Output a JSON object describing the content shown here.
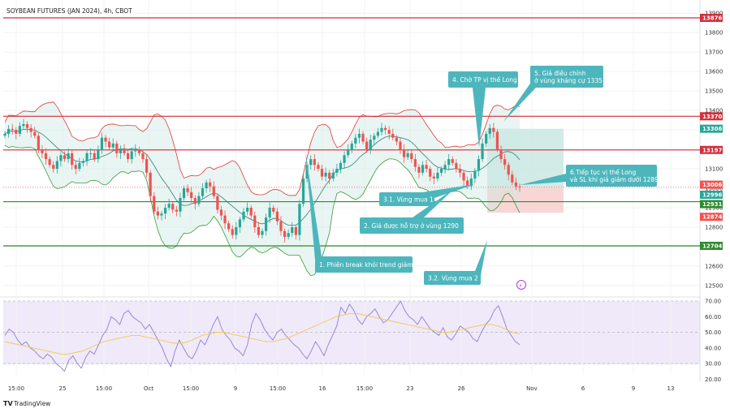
{
  "header": {
    "title": "SOYBEAN FUTURES (JAN 2024), 4h, CBOT"
  },
  "footer": {
    "brand": "TradingView",
    "event_glyph": "⚡"
  },
  "colors": {
    "up": "#26a69a",
    "down": "#ef5350",
    "red_line": "#d32f3c",
    "green_line": "#2e8b2e",
    "band_fill": "#cfe8e3",
    "band_upper": "#e03a3e",
    "band_lower": "#3c9a3c",
    "ma": "#2f7f7c",
    "rsi": "#8f7fd0",
    "rsi_ma": "#f2c94c",
    "rsi_bg": "#efe9f9",
    "callout": "#4db6bd",
    "tp_zone": "#cde9e4",
    "sl_zone": "#f8d2d2"
  },
  "chart_data": [
    {
      "type": "candlestick",
      "title": "SOYBEAN FUTURES (JAN 2024), 4h, CBOT",
      "y_axis_ticks": [
        13900,
        13800,
        13700,
        13600,
        13500,
        13400,
        13300,
        13200,
        13100,
        13000,
        12900,
        12800,
        12700,
        12600,
        12500
      ],
      "y_tick_labels": [
        "13900",
        "13800",
        "13700",
        "13600",
        "13500",
        "13400",
        "13300",
        "13200",
        "13100",
        "13000",
        "12900",
        "12800",
        "12700",
        "12600",
        "12500"
      ],
      "ylim": [
        12480,
        13925
      ],
      "x_tick_labels": [
        "15:00",
        "25",
        "15:00",
        "Oct",
        "15:00",
        "9",
        "15:00",
        "16",
        "15:00",
        "23",
        "26",
        "Nov",
        "6",
        "9",
        "13"
      ],
      "close_prices": [
        13280,
        13305,
        13300,
        13280,
        13320,
        13330,
        13310,
        13290,
        13270,
        13200,
        13180,
        13150,
        13120,
        13100,
        13140,
        13170,
        13150,
        13180,
        13120,
        13100,
        13130,
        13140,
        13180,
        13180,
        13150,
        13200,
        13260,
        13240,
        13210,
        13230,
        13180,
        13200,
        13180,
        13150,
        13190,
        13200,
        13180,
        13150,
        13080,
        12960,
        12880,
        12860,
        12870,
        12900,
        12920,
        12890,
        12880,
        12950,
        13000,
        12980,
        12950,
        12920,
        12960,
        13000,
        13030,
        13010,
        12960,
        12890,
        12860,
        12820,
        12790,
        12760,
        12800,
        12840,
        12880,
        12900,
        12860,
        12800,
        12760,
        12780,
        12850,
        12900,
        12880,
        12830,
        12780,
        12750,
        12770,
        12800,
        12760,
        12920,
        13050,
        13120,
        13150,
        13120,
        13100,
        13060,
        13080,
        13050,
        13080,
        13100,
        13130,
        13170,
        13200,
        13230,
        13260,
        13280,
        13240,
        13200,
        13250,
        13270,
        13290,
        13310,
        13300,
        13280,
        13260,
        13240,
        13200,
        13160,
        13180,
        13150,
        13110,
        13080,
        13120,
        13100,
        13060,
        13050,
        13080,
        13100,
        13120,
        13150,
        13130,
        13100,
        13080,
        13040,
        13010,
        13050,
        13090,
        13150,
        13230,
        13280,
        13310,
        13290,
        13200,
        13150,
        13120,
        13070,
        13030,
        13010,
        13006
      ],
      "levels": [
        {
          "value": 13876,
          "label": "13876",
          "color": "#d32f3c"
        },
        {
          "value": 13370,
          "label": "13370",
          "color": "#d32f3c"
        },
        {
          "value": 13306,
          "label": "13306",
          "color": "#26a69a"
        },
        {
          "value": 13197,
          "label": "13197",
          "color": "#d32f3c"
        },
        {
          "value": 13006,
          "label": "13006",
          "color": "#ef5350"
        },
        {
          "value": 12996,
          "label": "12996",
          "color": "#26a69a"
        },
        {
          "value": 12931,
          "label": "12931",
          "color": "#2e8b2e"
        },
        {
          "value": 12874,
          "label": "12874",
          "color": "#ef5350"
        },
        {
          "value": 12704,
          "label": "12704",
          "color": "#2e8b2e"
        }
      ],
      "annotations": [
        "4. Chờ TP vị thế Long",
        "5. Giá điều chỉnh\nở vùng kháng cự 1335",
        "6.Tiếp tục vị thế Long\nvà SL khi giá giảm dưới 1289",
        "3.1. Vùng mua 1",
        "2. Giá được hỗ trợ ở vùng 1290",
        "1. Phiên break khỏi trend giảm",
        "3.2. Vùng mua 2"
      ],
      "position": {
        "entry": 13006,
        "take_profit": 13306,
        "stop_loss": 12874
      }
    },
    {
      "type": "line",
      "title": "RSI",
      "y_axis_ticks": [
        70,
        60,
        50,
        40,
        30,
        20
      ],
      "y_tick_labels": [
        "70.00",
        "60.00",
        "50.00",
        "40.00",
        "30.00",
        "20.00"
      ],
      "ylim": [
        18,
        75
      ],
      "levels": [
        70,
        50,
        30
      ],
      "values": [
        48,
        52,
        50,
        45,
        42,
        44,
        40,
        38,
        35,
        33,
        36,
        34,
        30,
        28,
        25,
        32,
        35,
        30,
        27,
        34,
        38,
        36,
        42,
        48,
        52,
        60,
        58,
        55,
        62,
        64,
        60,
        58,
        56,
        52,
        55,
        50,
        45,
        40,
        33,
        28,
        38,
        45,
        40,
        35,
        33,
        38,
        45,
        42,
        48,
        55,
        60,
        52,
        48,
        45,
        40,
        38,
        35,
        42,
        55,
        62,
        58,
        52,
        48,
        45,
        50,
        52,
        48,
        45,
        42,
        40,
        36,
        33,
        38,
        44,
        40,
        35,
        42,
        48,
        54,
        66,
        62,
        68,
        64,
        58,
        55,
        60,
        62,
        65,
        60,
        56,
        58,
        62,
        66,
        70,
        64,
        60,
        58,
        55,
        60,
        56,
        52,
        50,
        48,
        53,
        47,
        45,
        49,
        54,
        52,
        50,
        46,
        44,
        50,
        55,
        58,
        64,
        67,
        60,
        52,
        48,
        44,
        42
      ],
      "ma_values": [
        44,
        43,
        42,
        41,
        40,
        39,
        38,
        37,
        36,
        36,
        37,
        38,
        40,
        42,
        44,
        45,
        46,
        47,
        48,
        48,
        47,
        46,
        45,
        44,
        43,
        43,
        44,
        46,
        48,
        49,
        50,
        50,
        49,
        48,
        47,
        46,
        45,
        44,
        44,
        45,
        46,
        48,
        50,
        52,
        54,
        56,
        58,
        60,
        61,
        62,
        62,
        61,
        60,
        59,
        58,
        57,
        56,
        55,
        54,
        53,
        52,
        51,
        50,
        50,
        51,
        52,
        53,
        54,
        55,
        55,
        54,
        52,
        50,
        49
      ]
    }
  ]
}
